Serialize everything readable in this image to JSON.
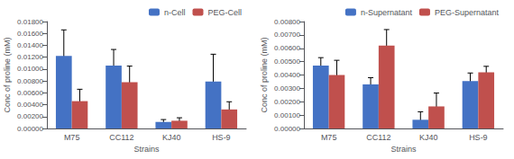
{
  "chart_data": [
    {
      "type": "bar",
      "xlabel": "Strains",
      "ylabel": "Conc of proline (mM)",
      "categories": [
        "M75",
        "CC112",
        "KJ40",
        "HS-9"
      ],
      "series": [
        {
          "name": "n-Cell",
          "color": "#4472C4",
          "values": [
            0.0122,
            0.0106,
            0.0011,
            0.0079
          ],
          "errors": [
            0.0044,
            0.0027,
            0.0004,
            0.0046
          ]
        },
        {
          "name": "PEG-Cell",
          "color": "#C0504D",
          "values": [
            0.0046,
            0.0078,
            0.0013,
            0.0032
          ],
          "errors": [
            0.002,
            0.0027,
            0.0005,
            0.0013
          ]
        }
      ],
      "ylim": [
        0,
        0.018
      ],
      "yticks": [
        {
          "value": 0,
          "label": "0.00000"
        },
        {
          "value": 0.002,
          "label": "0.00200"
        },
        {
          "value": 0.004,
          "label": "0.00400"
        },
        {
          "value": 0.006,
          "label": "0.00600"
        },
        {
          "value": 0.008,
          "label": "0.00800"
        },
        {
          "value": 0.01,
          "label": "0.01000"
        },
        {
          "value": 0.012,
          "label": "0.01200"
        },
        {
          "value": 0.014,
          "label": "0.01400"
        },
        {
          "value": 0.016,
          "label": "0.01600"
        },
        {
          "value": 0.018,
          "label": "0.01800"
        }
      ],
      "legend": "upper right",
      "grid": false
    },
    {
      "type": "bar",
      "xlabel": "Strains",
      "ylabel": "Conc of proline (mM)",
      "categories": [
        "M75",
        "CC112",
        "KJ40",
        "HS-9"
      ],
      "series": [
        {
          "name": "n-Supernatant",
          "color": "#4472C4",
          "values": [
            0.0047,
            0.0033,
            0.00065,
            0.00355
          ],
          "errors": [
            0.0006,
            0.0005,
            0.0006,
            0.0006
          ]
        },
        {
          "name": "PEG-Supernatant",
          "color": "#C0504D",
          "values": [
            0.004,
            0.0062,
            0.00165,
            0.0042
          ],
          "errors": [
            0.0011,
            0.0012,
            0.001,
            0.00045
          ]
        }
      ],
      "ylim": [
        0,
        0.008
      ],
      "yticks": [
        {
          "value": 0,
          "label": "0.00000"
        },
        {
          "value": 0.001,
          "label": "0.00100"
        },
        {
          "value": 0.002,
          "label": "0.00200"
        },
        {
          "value": 0.003,
          "label": "0.00300"
        },
        {
          "value": 0.004,
          "label": "0.00400"
        },
        {
          "value": 0.005,
          "label": "0.00500"
        },
        {
          "value": 0.006,
          "label": "0.00600"
        },
        {
          "value": 0.007,
          "label": "0.00700"
        },
        {
          "value": 0.008,
          "label": "0.00800"
        }
      ],
      "legend": "upper right",
      "grid": false
    }
  ]
}
